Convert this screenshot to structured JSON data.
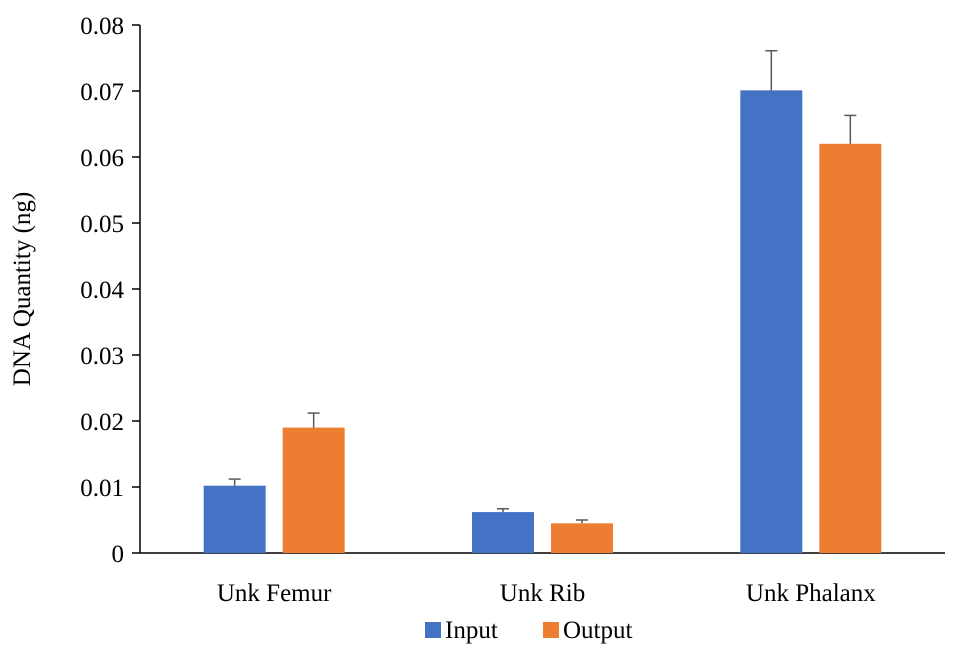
{
  "chart_data": {
    "type": "bar",
    "title": "",
    "xlabel": "",
    "ylabel": "DNA Quantity (ng)",
    "ylim": [
      0,
      0.08
    ],
    "yticks": [
      "0",
      "0.01",
      "0.02",
      "0.03",
      "0.04",
      "0.05",
      "0.06",
      "0.07",
      "0.08"
    ],
    "categories": [
      "Unk Femur",
      "Unk Rib",
      "Unk Phalanx"
    ],
    "series": [
      {
        "name": "Input",
        "color": "#4472C4",
        "values": [
          0.0102,
          0.0062,
          0.0701
        ],
        "errors": [
          0.001,
          0.0005,
          0.006
        ]
      },
      {
        "name": "Output",
        "color": "#ED7D31",
        "values": [
          0.019,
          0.0045,
          0.062
        ],
        "errors": [
          0.0022,
          0.0005,
          0.0043
        ]
      }
    ],
    "grid": false,
    "legend": "bottom",
    "error_bar_color": "#595959"
  }
}
